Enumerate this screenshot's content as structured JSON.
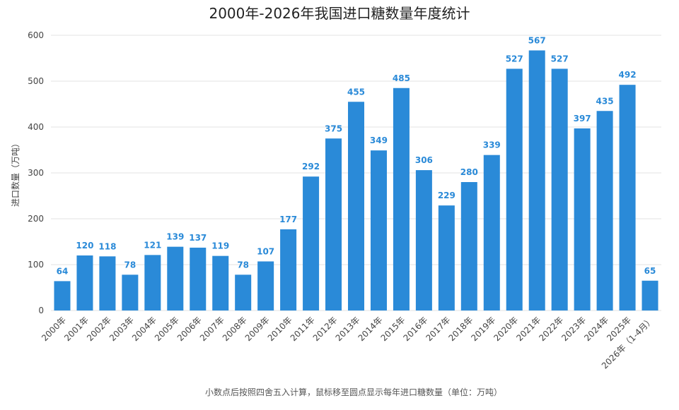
{
  "chart_data": {
    "type": "bar",
    "title": "2000年-2026年我国进口糖数量年度统计",
    "ylabel": "进口数量（万吨）",
    "xlabel": "",
    "ylim": [
      0,
      600
    ],
    "yticks": [
      0,
      100,
      200,
      300,
      400,
      500,
      600
    ],
    "grid": true,
    "bar_color": "#2a8ad8",
    "categories": [
      "2000年",
      "2001年",
      "2002年",
      "2003年",
      "2004年",
      "2005年",
      "2006年",
      "2007年",
      "2008年",
      "2009年",
      "2010年",
      "2011年",
      "2012年",
      "2013年",
      "2014年",
      "2015年",
      "2016年",
      "2017年",
      "2018年",
      "2019年",
      "2020年",
      "2021年",
      "2022年",
      "2023年",
      "2024年",
      "2025年",
      "2026年（1-4月）"
    ],
    "values": [
      64,
      120,
      118,
      78,
      121,
      139,
      137,
      119,
      78,
      107,
      177,
      292,
      375,
      455,
      349,
      485,
      306,
      229,
      280,
      339,
      527,
      567,
      527,
      397,
      435,
      492,
      65
    ],
    "footnote": "小数点后按照四舍五入计算，鼠标移至圆点显示每年进口糖数量（单位：万吨）"
  }
}
